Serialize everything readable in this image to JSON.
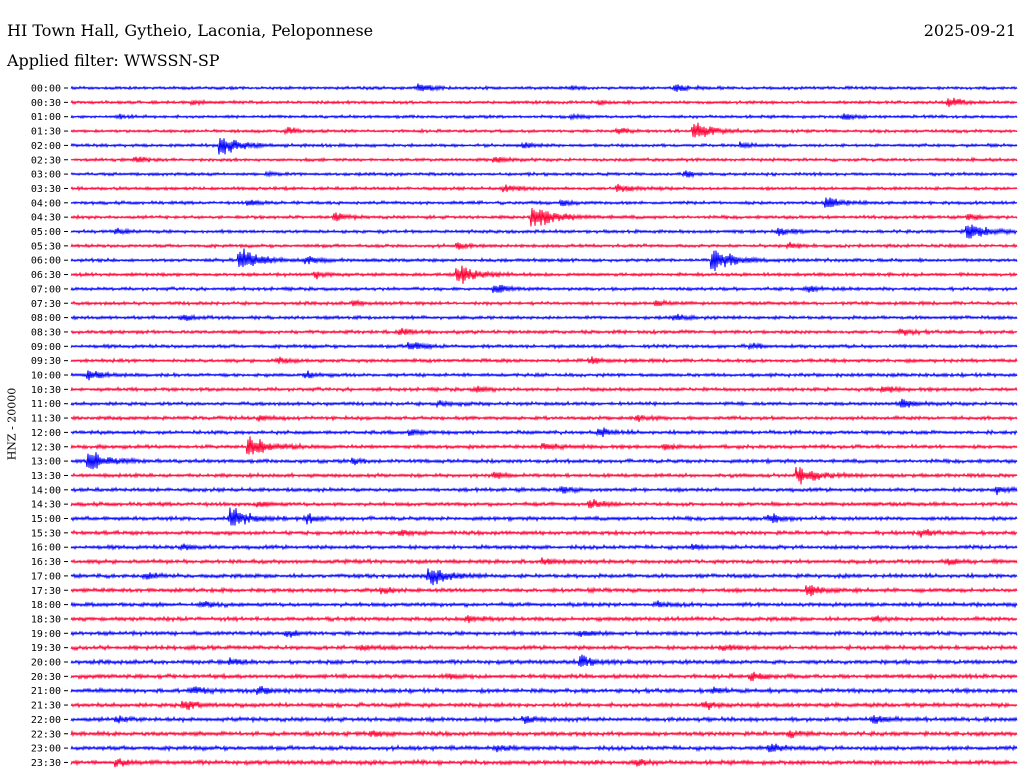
{
  "header": {
    "station": "HI Town Hall, Gytheio, Laconia, Peloponnese",
    "date": "2025-09-21",
    "filter_label": "Applied filter: WWSSN-SP"
  },
  "chart_data": {
    "type": "line",
    "title": "",
    "ylabel": "HNZ - 20000",
    "trace_colors": [
      "#0000ff",
      "#ff0033"
    ],
    "rows": [
      {
        "label": "00:00",
        "events": [
          {
            "x": 0.37,
            "amp": 5
          },
          {
            "x": 0.64,
            "amp": 4
          },
          {
            "x": 0.53,
            "amp": 2
          }
        ]
      },
      {
        "label": "00:30",
        "events": [
          {
            "x": 0.93,
            "amp": 5
          },
          {
            "x": 0.13,
            "amp": 2
          },
          {
            "x": 0.56,
            "amp": 2
          }
        ]
      },
      {
        "label": "01:00",
        "events": [
          {
            "x": 0.82,
            "amp": 3
          },
          {
            "x": 0.05,
            "amp": 2
          },
          {
            "x": 0.53,
            "amp": 2
          }
        ]
      },
      {
        "label": "01:30",
        "events": [
          {
            "x": 0.66,
            "amp": 9
          },
          {
            "x": 0.23,
            "amp": 3
          },
          {
            "x": 0.58,
            "amp": 3
          }
        ]
      },
      {
        "label": "02:00",
        "events": [
          {
            "x": 0.16,
            "amp": 10
          },
          {
            "x": 0.48,
            "amp": 3
          },
          {
            "x": 0.71,
            "amp": 3
          }
        ]
      },
      {
        "label": "02:30",
        "events": [
          {
            "x": 0.07,
            "amp": 3
          },
          {
            "x": 0.45,
            "amp": 3
          }
        ]
      },
      {
        "label": "03:00",
        "events": [
          {
            "x": 0.21,
            "amp": 2
          },
          {
            "x": 0.65,
            "amp": 3
          }
        ]
      },
      {
        "label": "03:30",
        "events": [
          {
            "x": 0.46,
            "amp": 4
          },
          {
            "x": 0.58,
            "amp": 4
          }
        ]
      },
      {
        "label": "04:00",
        "events": [
          {
            "x": 0.8,
            "amp": 6
          },
          {
            "x": 0.19,
            "amp": 3
          },
          {
            "x": 0.52,
            "amp": 3
          }
        ]
      },
      {
        "label": "04:30",
        "events": [
          {
            "x": 0.49,
            "amp": 12
          },
          {
            "x": 0.28,
            "amp": 4
          },
          {
            "x": 0.95,
            "amp": 3
          }
        ]
      },
      {
        "label": "05:00",
        "events": [
          {
            "x": 0.95,
            "amp": 9
          },
          {
            "x": 0.75,
            "amp": 4
          },
          {
            "x": 0.05,
            "amp": 3
          }
        ]
      },
      {
        "label": "05:30",
        "events": [
          {
            "x": 0.41,
            "amp": 3
          },
          {
            "x": 0.76,
            "amp": 3
          }
        ]
      },
      {
        "label": "06:00",
        "events": [
          {
            "x": 0.18,
            "amp": 11
          },
          {
            "x": 0.68,
            "amp": 11
          },
          {
            "x": 0.25,
            "amp": 4
          }
        ]
      },
      {
        "label": "06:30",
        "events": [
          {
            "x": 0.41,
            "amp": 10
          },
          {
            "x": 0.26,
            "amp": 3
          }
        ]
      },
      {
        "label": "07:00",
        "events": [
          {
            "x": 0.45,
            "amp": 4
          },
          {
            "x": 0.78,
            "amp": 3
          }
        ]
      },
      {
        "label": "07:30",
        "events": [
          {
            "x": 0.3,
            "amp": 3
          },
          {
            "x": 0.62,
            "amp": 3
          }
        ]
      },
      {
        "label": "08:00",
        "events": [
          {
            "x": 0.12,
            "amp": 3
          },
          {
            "x": 0.64,
            "amp": 3
          }
        ]
      },
      {
        "label": "08:30",
        "events": [
          {
            "x": 0.35,
            "amp": 3
          },
          {
            "x": 0.88,
            "amp": 3
          }
        ]
      },
      {
        "label": "09:00",
        "events": [
          {
            "x": 0.36,
            "amp": 5
          },
          {
            "x": 0.72,
            "amp": 3
          }
        ]
      },
      {
        "label": "09:30",
        "events": [
          {
            "x": 0.22,
            "amp": 3
          },
          {
            "x": 0.55,
            "amp": 3
          }
        ]
      },
      {
        "label": "10:00",
        "events": [
          {
            "x": 0.02,
            "amp": 5
          },
          {
            "x": 0.25,
            "amp": 3
          }
        ]
      },
      {
        "label": "10:30",
        "events": [
          {
            "x": 0.43,
            "amp": 3
          },
          {
            "x": 0.86,
            "amp": 3
          }
        ]
      },
      {
        "label": "11:00",
        "events": [
          {
            "x": 0.88,
            "amp": 4
          },
          {
            "x": 0.39,
            "amp": 3
          }
        ]
      },
      {
        "label": "11:30",
        "events": [
          {
            "x": 0.2,
            "amp": 3
          },
          {
            "x": 0.6,
            "amp": 3
          }
        ]
      },
      {
        "label": "12:00",
        "events": [
          {
            "x": 0.56,
            "amp": 4
          },
          {
            "x": 0.36,
            "amp": 3
          }
        ]
      },
      {
        "label": "12:30",
        "events": [
          {
            "x": 0.19,
            "amp": 11
          },
          {
            "x": 0.5,
            "amp": 4
          },
          {
            "x": 0.63,
            "amp": 3
          }
        ]
      },
      {
        "label": "13:00",
        "events": [
          {
            "x": 0.02,
            "amp": 10
          },
          {
            "x": 0.3,
            "amp": 3
          }
        ]
      },
      {
        "label": "13:30",
        "events": [
          {
            "x": 0.77,
            "amp": 9
          },
          {
            "x": 0.45,
            "amp": 3
          }
        ]
      },
      {
        "label": "14:00",
        "events": [
          {
            "x": 0.98,
            "amp": 4
          },
          {
            "x": 0.52,
            "amp": 3
          }
        ]
      },
      {
        "label": "14:30",
        "events": [
          {
            "x": 0.55,
            "amp": 4
          },
          {
            "x": 0.2,
            "amp": 3
          }
        ]
      },
      {
        "label": "15:00",
        "events": [
          {
            "x": 0.17,
            "amp": 10
          },
          {
            "x": 0.74,
            "amp": 4
          },
          {
            "x": 0.25,
            "amp": 4
          }
        ]
      },
      {
        "label": "15:30",
        "events": [
          {
            "x": 0.35,
            "amp": 3
          },
          {
            "x": 0.9,
            "amp": 3
          }
        ]
      },
      {
        "label": "16:00",
        "events": [
          {
            "x": 0.12,
            "amp": 3
          },
          {
            "x": 0.66,
            "amp": 3
          }
        ]
      },
      {
        "label": "16:30",
        "events": [
          {
            "x": 0.5,
            "amp": 4
          },
          {
            "x": 0.93,
            "amp": 3
          }
        ]
      },
      {
        "label": "17:00",
        "events": [
          {
            "x": 0.38,
            "amp": 9
          },
          {
            "x": 0.08,
            "amp": 3
          }
        ]
      },
      {
        "label": "17:30",
        "events": [
          {
            "x": 0.78,
            "amp": 6
          },
          {
            "x": 0.33,
            "amp": 3
          }
        ]
      },
      {
        "label": "18:00",
        "events": [
          {
            "x": 0.62,
            "amp": 3
          },
          {
            "x": 0.14,
            "amp": 3
          }
        ]
      },
      {
        "label": "18:30",
        "events": [
          {
            "x": 0.42,
            "amp": 3
          },
          {
            "x": 0.85,
            "amp": 3
          }
        ]
      },
      {
        "label": "19:00",
        "events": [
          {
            "x": 0.54,
            "amp": 3
          },
          {
            "x": 0.23,
            "amp": 3
          }
        ]
      },
      {
        "label": "19:30",
        "events": [
          {
            "x": 0.69,
            "amp": 3
          },
          {
            "x": 0.31,
            "amp": 3
          }
        ]
      },
      {
        "label": "20:00",
        "events": [
          {
            "x": 0.54,
            "amp": 6
          },
          {
            "x": 0.17,
            "amp": 3
          }
        ]
      },
      {
        "label": "20:30",
        "events": [
          {
            "x": 0.72,
            "amp": 4
          },
          {
            "x": 0.4,
            "amp": 3
          }
        ]
      },
      {
        "label": "21:00",
        "events": [
          {
            "x": 0.2,
            "amp": 4
          },
          {
            "x": 0.13,
            "amp": 4
          },
          {
            "x": 0.68,
            "amp": 3
          }
        ]
      },
      {
        "label": "21:30",
        "events": [
          {
            "x": 0.12,
            "amp": 5
          },
          {
            "x": 0.67,
            "amp": 4
          }
        ]
      },
      {
        "label": "22:00",
        "events": [
          {
            "x": 0.48,
            "amp": 4
          },
          {
            "x": 0.85,
            "amp": 4
          },
          {
            "x": 0.05,
            "amp": 3
          }
        ]
      },
      {
        "label": "22:30",
        "events": [
          {
            "x": 0.32,
            "amp": 3
          },
          {
            "x": 0.76,
            "amp": 3
          }
        ]
      },
      {
        "label": "23:00",
        "events": [
          {
            "x": 0.74,
            "amp": 4
          },
          {
            "x": 0.45,
            "amp": 3
          }
        ]
      },
      {
        "label": "23:30",
        "events": [
          {
            "x": 0.05,
            "amp": 4
          },
          {
            "x": 0.6,
            "amp": 3
          }
        ]
      }
    ]
  }
}
